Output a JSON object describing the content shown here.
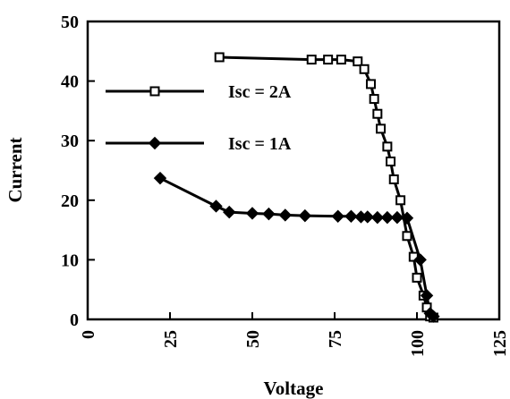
{
  "chart_data": {
    "type": "line",
    "xlabel": "Voltage",
    "ylabel": "Current",
    "xlim": [
      0,
      125
    ],
    "ylim": [
      0,
      50
    ],
    "xticks": [
      "0",
      "25",
      "50",
      "75",
      "100",
      "125"
    ],
    "yticks": [
      "0",
      "10",
      "20",
      "30",
      "40",
      "50"
    ],
    "grid": false,
    "legend": "top-left",
    "series": [
      {
        "name": "Isc = 2A",
        "marker": "square-open",
        "x": [
          40,
          68,
          73,
          77,
          82,
          84,
          86,
          87,
          88,
          89,
          91,
          92,
          93,
          95,
          97,
          99,
          100,
          102,
          103,
          104,
          105
        ],
        "y": [
          44,
          43.6,
          43.6,
          43.6,
          43.3,
          42,
          39.5,
          37,
          34.5,
          32,
          29,
          26.5,
          23.5,
          20,
          14,
          10.5,
          7,
          4,
          2,
          0.5,
          0.3
        ]
      },
      {
        "name": "Isc = 1A",
        "marker": "diamond-filled",
        "x": [
          22,
          39,
          43,
          50,
          55,
          60,
          66,
          76,
          80,
          83,
          85,
          88,
          91,
          94,
          97,
          101,
          103,
          104,
          105
        ],
        "y": [
          23.7,
          19,
          18,
          17.8,
          17.7,
          17.5,
          17.4,
          17.3,
          17.3,
          17.2,
          17.2,
          17.1,
          17.1,
          17.1,
          17,
          10,
          4,
          1,
          0.5
        ]
      }
    ]
  }
}
